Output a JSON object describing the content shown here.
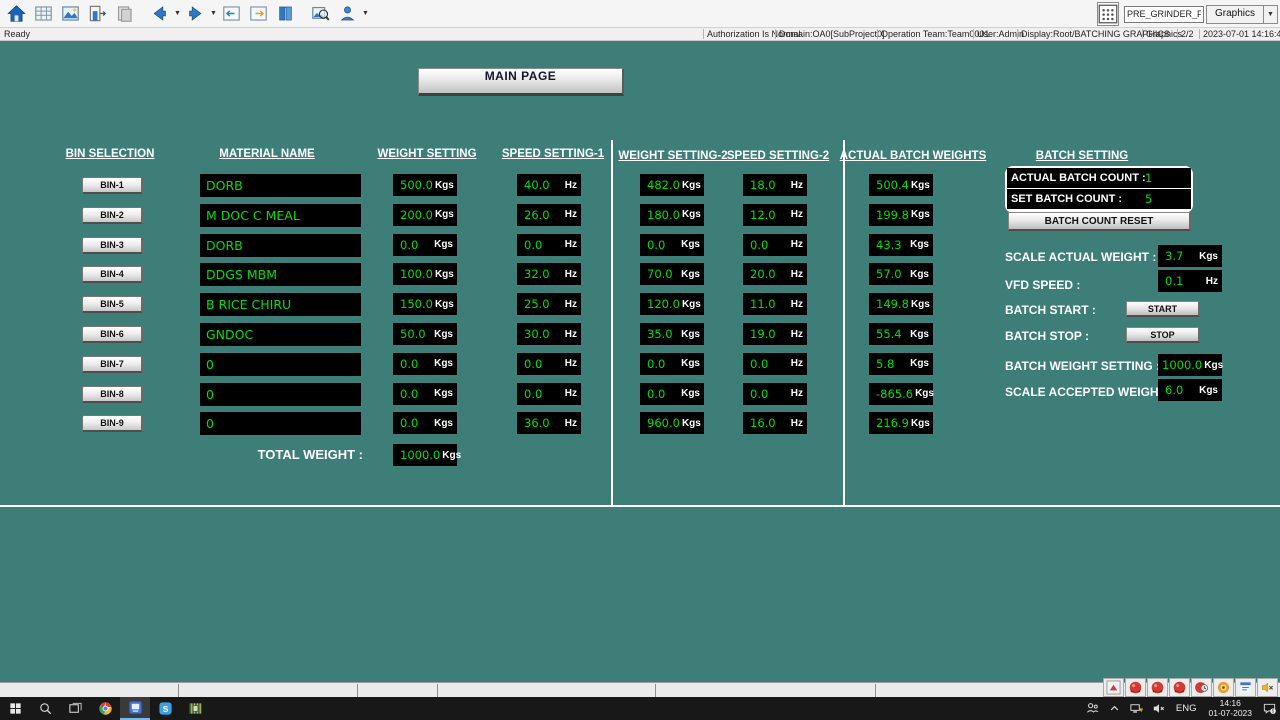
{
  "toolbar": {
    "icons": [
      "home",
      "worksheet",
      "graphics-pic",
      "exit-door",
      "paste-page",
      "back-arrow",
      "forward-arrow",
      "window-prev",
      "window-next",
      "library-book",
      "find-picture",
      "user-person"
    ],
    "display_field_value": "PRE_GRINDER_FD",
    "graphics_button_label": "Graphics"
  },
  "statusbar": {
    "ready": "Ready",
    "authorization": "Authorization Is Normal",
    "domain": "Domain:OA0[SubProject0]",
    "operation_team": "Operation Team:Team0001",
    "user": "User:Admin",
    "display": "Display:Root/BATCHING GRAPHICS",
    "mode": "Graphics",
    "page": "2/2",
    "datetime": "2023-07-01 14:16:40"
  },
  "main": {
    "main_page_button": "MAIN PAGE",
    "headers": {
      "bin_selection": "BIN SELECTION",
      "material_name": "MATERIAL NAME",
      "weight_setting": "WEIGHT SETTING",
      "speed_setting_1": "SPEED SETTING-1",
      "weight_setting_2": "WEIGHT SETTING-2",
      "speed_setting_2": "SPEED SETTING-2",
      "actual_batch_weights": "ACTUAL BATCH WEIGHTS",
      "batch_setting": "BATCH SETTING"
    },
    "units": {
      "weight": "Kgs",
      "speed": "Hz"
    },
    "rows": [
      {
        "bin": "BIN-1",
        "material": "DORB",
        "w1": "500.0",
        "s1": "40.0",
        "w2": "482.0",
        "s2": "18.0",
        "actual": "500.4"
      },
      {
        "bin": "BIN-2",
        "material": "M DOC C MEAL",
        "w1": "200.0",
        "s1": "26.0",
        "w2": "180.0",
        "s2": "12.0",
        "actual": "199.8"
      },
      {
        "bin": "BIN-3",
        "material": "DORB",
        "w1": "0.0",
        "s1": "0.0",
        "w2": "0.0",
        "s2": "0.0",
        "actual": "43.3"
      },
      {
        "bin": "BIN-4",
        "material": "DDGS MBM",
        "w1": "100.0",
        "s1": "32.0",
        "w2": "70.0",
        "s2": "20.0",
        "actual": "57.0"
      },
      {
        "bin": "BIN-5",
        "material": "B RICE CHIRU",
        "w1": "150.0",
        "s1": "25.0",
        "w2": "120.0",
        "s2": "11.0",
        "actual": "149.8"
      },
      {
        "bin": "BIN-6",
        "material": "GNDOC",
        "w1": "50.0",
        "s1": "30.0",
        "w2": "35.0",
        "s2": "19.0",
        "actual": "55.4"
      },
      {
        "bin": "BIN-7",
        "material": "0",
        "w1": "0.0",
        "s1": "0.0",
        "w2": "0.0",
        "s2": "0.0",
        "actual": "5.8"
      },
      {
        "bin": "BIN-8",
        "material": "0",
        "w1": "0.0",
        "s1": "0.0",
        "w2": "0.0",
        "s2": "0.0",
        "actual": "-865.6"
      },
      {
        "bin": "BIN-9",
        "material": "0",
        "w1": "0.0",
        "s1": "36.0",
        "w2": "960.0",
        "s2": "16.0",
        "actual": "216.9"
      }
    ],
    "total_weight_label": "TOTAL WEIGHT :",
    "total_weight": "1000.0",
    "batch": {
      "actual_batch_count_label": "ACTUAL BATCH COUNT :",
      "actual_batch_count": "1",
      "set_batch_count_label": "SET BATCH COUNT :",
      "set_batch_count": "5",
      "batch_count_reset_button": "BATCH COUNT RESET",
      "scale_actual_weight_label": "SCALE ACTUAL WEIGHT :",
      "scale_actual_weight": "3.7",
      "vfd_speed_label": "VFD SPEED :",
      "vfd_speed": "0.1",
      "batch_start_label": "BATCH START :",
      "start_button": "START",
      "batch_stop_label": "BATCH STOP :",
      "stop_button": "STOP",
      "batch_weight_setting_label": "BATCH WEIGHT SETTING :",
      "batch_weight_setting": "1000.0",
      "scale_accepted_weight_label": "SCALE ACCEPTED WEIGHT :",
      "scale_accepted_weight": "6.0"
    }
  },
  "bottom_strip": {
    "tray_icons": [
      "scroll-up-triangle",
      "alarm-orb",
      "alarm-orb",
      "alarm-orb",
      "alarm-clock-orb",
      "target-orb",
      "info-doc",
      "speaker-warning"
    ]
  },
  "taskbar": {
    "left_icons": [
      "start",
      "search",
      "task-view",
      "chrome",
      "hmi-app",
      "skype",
      "plc-app"
    ],
    "tray": {
      "language": "ENG",
      "time": "14:16",
      "date": "01-07-2023",
      "notification_count": "5"
    }
  }
}
